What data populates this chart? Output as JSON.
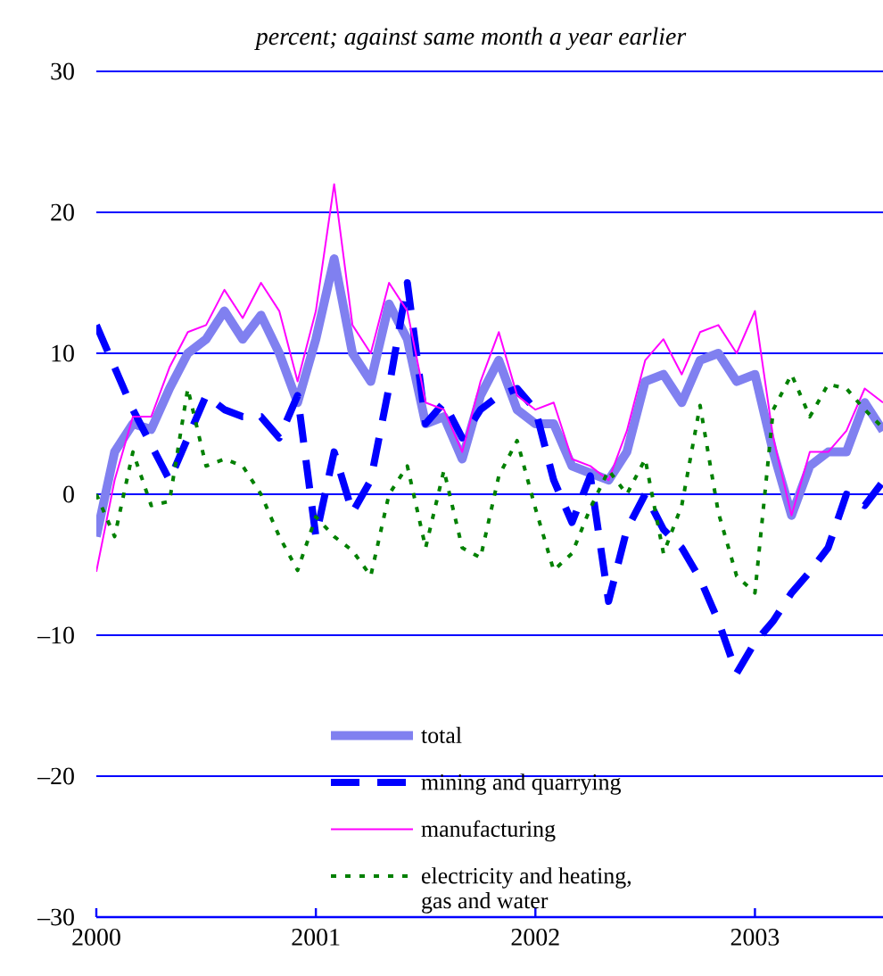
{
  "chart_data": {
    "type": "line",
    "subtitle": "percent; against same month a year earlier",
    "x": [
      "2000-01",
      "2000-02",
      "2000-03",
      "2000-04",
      "2000-05",
      "2000-06",
      "2000-07",
      "2000-08",
      "2000-09",
      "2000-10",
      "2000-11",
      "2000-12",
      "2001-01",
      "2001-02",
      "2001-03",
      "2001-04",
      "2001-05",
      "2001-06",
      "2001-07",
      "2001-08",
      "2001-09",
      "2001-10",
      "2001-11",
      "2001-12",
      "2002-01",
      "2002-02",
      "2002-03",
      "2002-04",
      "2002-05",
      "2002-06",
      "2002-07",
      "2002-08",
      "2002-09",
      "2002-10",
      "2002-11",
      "2002-12",
      "2003-01",
      "2003-02",
      "2003-03",
      "2003-04",
      "2003-05",
      "2003-06",
      "2003-07",
      "2003-08"
    ],
    "series": [
      {
        "name": "total",
        "color": "#8080f0",
        "line_style": "solid",
        "values": [
          -3,
          3,
          5,
          4.6,
          7.5,
          10,
          11,
          13,
          11,
          12.7,
          10,
          6.5,
          11,
          16.7,
          10,
          8,
          13.5,
          11,
          5,
          5.5,
          2.5,
          7,
          9.5,
          6,
          5,
          5,
          2,
          1.5,
          1,
          3,
          8,
          8.5,
          6.5,
          9.5,
          10,
          8,
          8.5,
          3,
          -1.5,
          2,
          3,
          3,
          6.5,
          4.5
        ]
      },
      {
        "name": "mining and quarrying",
        "color": "#0000ff",
        "line_style": "dashed",
        "values": [
          12,
          9,
          6,
          3.5,
          1,
          4,
          7,
          6,
          5.5,
          5.5,
          4,
          7,
          -3,
          3,
          -1.3,
          1,
          7.6,
          15,
          5,
          6.5,
          4,
          6,
          7,
          7.5,
          6,
          1,
          -2,
          1.3,
          -7.6,
          -2.5,
          0,
          -2.5,
          -3.8,
          -6,
          -9,
          -12.7,
          -10.5,
          -9,
          -7,
          -5.5,
          -3.8,
          0,
          -0.8,
          0.9
        ]
      },
      {
        "name": "manufacturing",
        "color": "#ff00ff",
        "line_style": "solid",
        "values": [
          -5.5,
          1,
          5.5,
          5.5,
          9,
          11.5,
          12,
          14.5,
          12.5,
          15,
          13,
          8,
          13,
          22,
          12,
          10,
          15,
          13,
          6.5,
          6,
          3,
          8,
          11.5,
          7,
          6,
          6.5,
          2.5,
          2,
          1,
          4.5,
          9.5,
          11,
          8.5,
          11.5,
          12,
          10,
          13,
          4,
          -1.5,
          3,
          3,
          4.5,
          7.5,
          6.5
        ]
      },
      {
        "name": "electricity and heating, gas and water",
        "color": "#008000",
        "line_style": "dotted",
        "values": [
          0,
          -3,
          3,
          -0.8,
          -0.5,
          7.5,
          2,
          2.5,
          2,
          0,
          -3,
          -5.4,
          -1.6,
          -3,
          -4,
          -5.8,
          0,
          2,
          -3.8,
          1.7,
          -3.8,
          -4.5,
          1.3,
          3.8,
          -1,
          -5.4,
          -4.2,
          -1,
          1.7,
          0,
          2.5,
          -4.2,
          -0.8,
          6.3,
          -1.3,
          -5.8,
          -7,
          6,
          8.5,
          5.5,
          7.8,
          7.5,
          6,
          4.7
        ]
      }
    ],
    "xlim": [
      "2000-01",
      "2003-08"
    ],
    "xticks": [
      "2000",
      "2001",
      "2002",
      "2003"
    ],
    "ylim": [
      -30,
      30
    ],
    "yticks": [
      {
        "value": -30,
        "label": "–30"
      },
      {
        "value": -20,
        "label": "–20"
      },
      {
        "value": -10,
        "label": "–10"
      },
      0,
      10,
      20,
      30
    ],
    "grid": "y",
    "legend": "bottom"
  }
}
